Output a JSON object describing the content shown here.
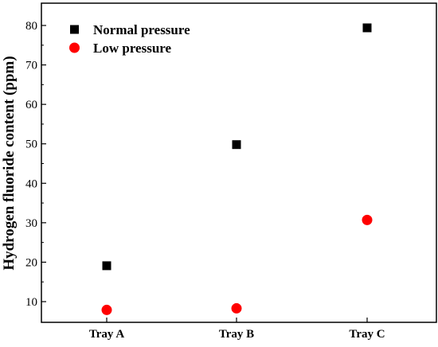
{
  "chart_data": {
    "type": "scatter",
    "title": "",
    "xlabel": "",
    "ylabel": "Hydrogen fluoride content (ppm)",
    "categories": [
      "Tray A",
      "Tray B",
      "Tray C"
    ],
    "ylim": [
      5,
      85
    ],
    "yticks": [
      10,
      20,
      30,
      40,
      50,
      60,
      70,
      80
    ],
    "grid": false,
    "legend_position": "top-left",
    "series": [
      {
        "name": "Normal pressure",
        "marker": "square",
        "color": "#000000",
        "values": [
          19.1,
          49.8,
          79.4
        ]
      },
      {
        "name": "Low pressure",
        "marker": "circle",
        "color": "#ff0000",
        "values": [
          7.9,
          8.3,
          30.7
        ]
      }
    ]
  }
}
